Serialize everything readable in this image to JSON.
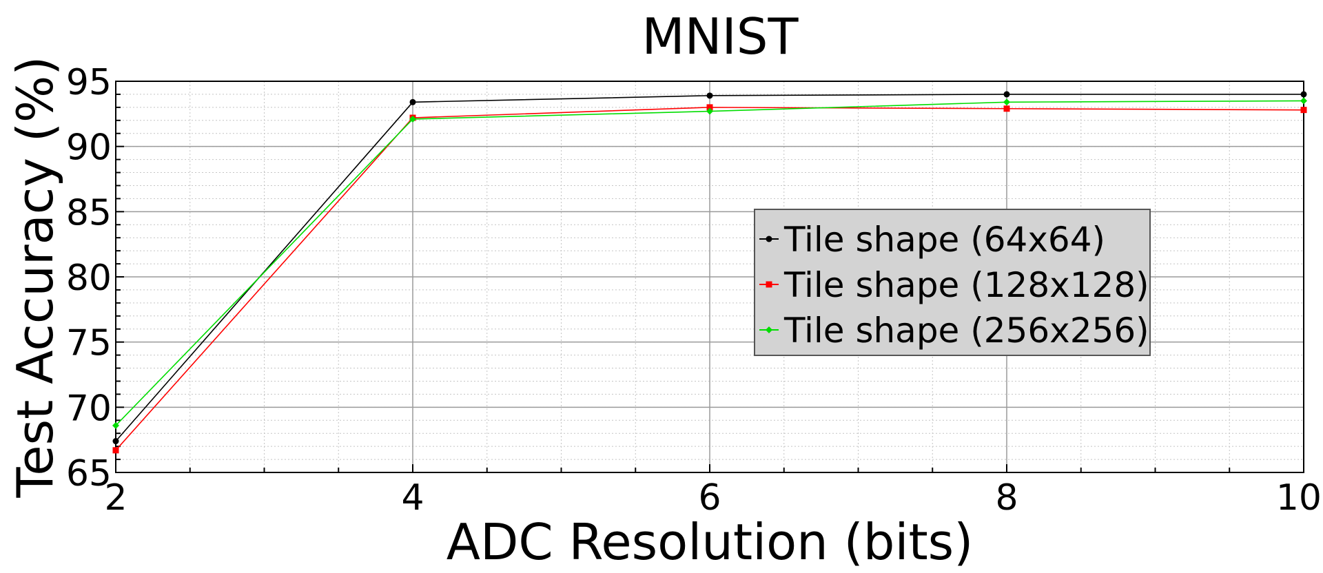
{
  "chart_data": {
    "type": "line",
    "title": "MNIST",
    "xlabel": "ADC Resolution (bits)",
    "ylabel": "Test Accuracy (%)",
    "xlim": [
      2,
      10
    ],
    "ylim": [
      65,
      95
    ],
    "x_ticks": [
      2,
      4,
      6,
      8,
      10
    ],
    "y_ticks": [
      65,
      70,
      75,
      80,
      85,
      90,
      95
    ],
    "x_minor_step": 0.5,
    "y_minor_step": 1,
    "grid": true,
    "legend_position": "center-right",
    "x": [
      2,
      4,
      6,
      8,
      10
    ],
    "series": [
      {
        "name": "Tile shape (64x64)",
        "color": "#000000",
        "marker": "circle",
        "values": [
          67.4,
          93.4,
          93.9,
          94.0,
          94.0
        ]
      },
      {
        "name": "Tile shape (128x128)",
        "color": "#ff0000",
        "marker": "square",
        "values": [
          66.7,
          92.2,
          93.0,
          92.9,
          92.8
        ]
      },
      {
        "name": "Tile shape (256x256)",
        "color": "#00dd00",
        "marker": "diamond",
        "values": [
          68.6,
          92.1,
          92.7,
          93.4,
          93.5
        ]
      }
    ]
  }
}
